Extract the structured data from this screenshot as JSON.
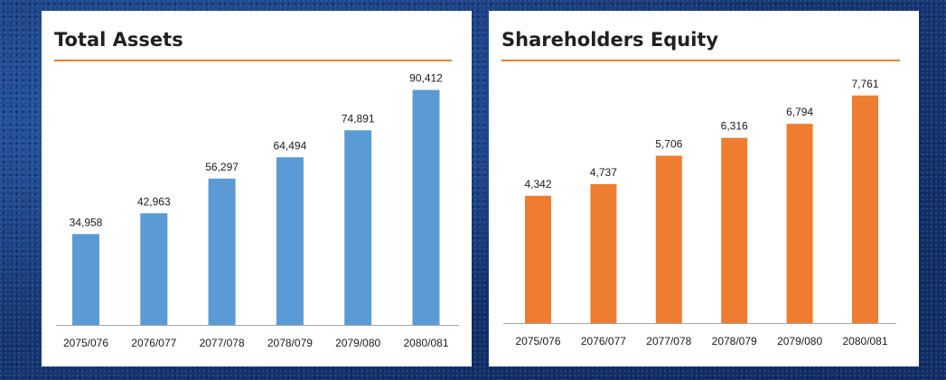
{
  "chart_data": [
    {
      "type": "bar",
      "title": "Total Assets",
      "categories": [
        "2075/076",
        "2076/077",
        "2077/078",
        "2078/079",
        "2079/080",
        "2080/081"
      ],
      "values": [
        34958,
        42963,
        56297,
        64494,
        74891,
        90412
      ],
      "value_labels": [
        "34,958",
        "42,963",
        "56,297",
        "64,494",
        "74,891",
        "90,412"
      ],
      "ylim": [
        0,
        100000
      ],
      "bar_color": "#5b9bd5",
      "accent_color": "#ee7d31",
      "grid": false,
      "legend": false
    },
    {
      "type": "bar",
      "title": "Shareholders Equity",
      "categories": [
        "2075/076",
        "2076/077",
        "2077/078",
        "2078/079",
        "2079/080",
        "2080/081"
      ],
      "values": [
        4342,
        4737,
        5706,
        6316,
        6794,
        7761
      ],
      "value_labels": [
        "4,342",
        "4,737",
        "5,706",
        "6,316",
        "6,794",
        "7,761"
      ],
      "ylim": [
        0,
        8800
      ],
      "bar_color": "#ee7d31",
      "accent_color": "#ee7d31",
      "grid": false,
      "legend": false
    }
  ]
}
